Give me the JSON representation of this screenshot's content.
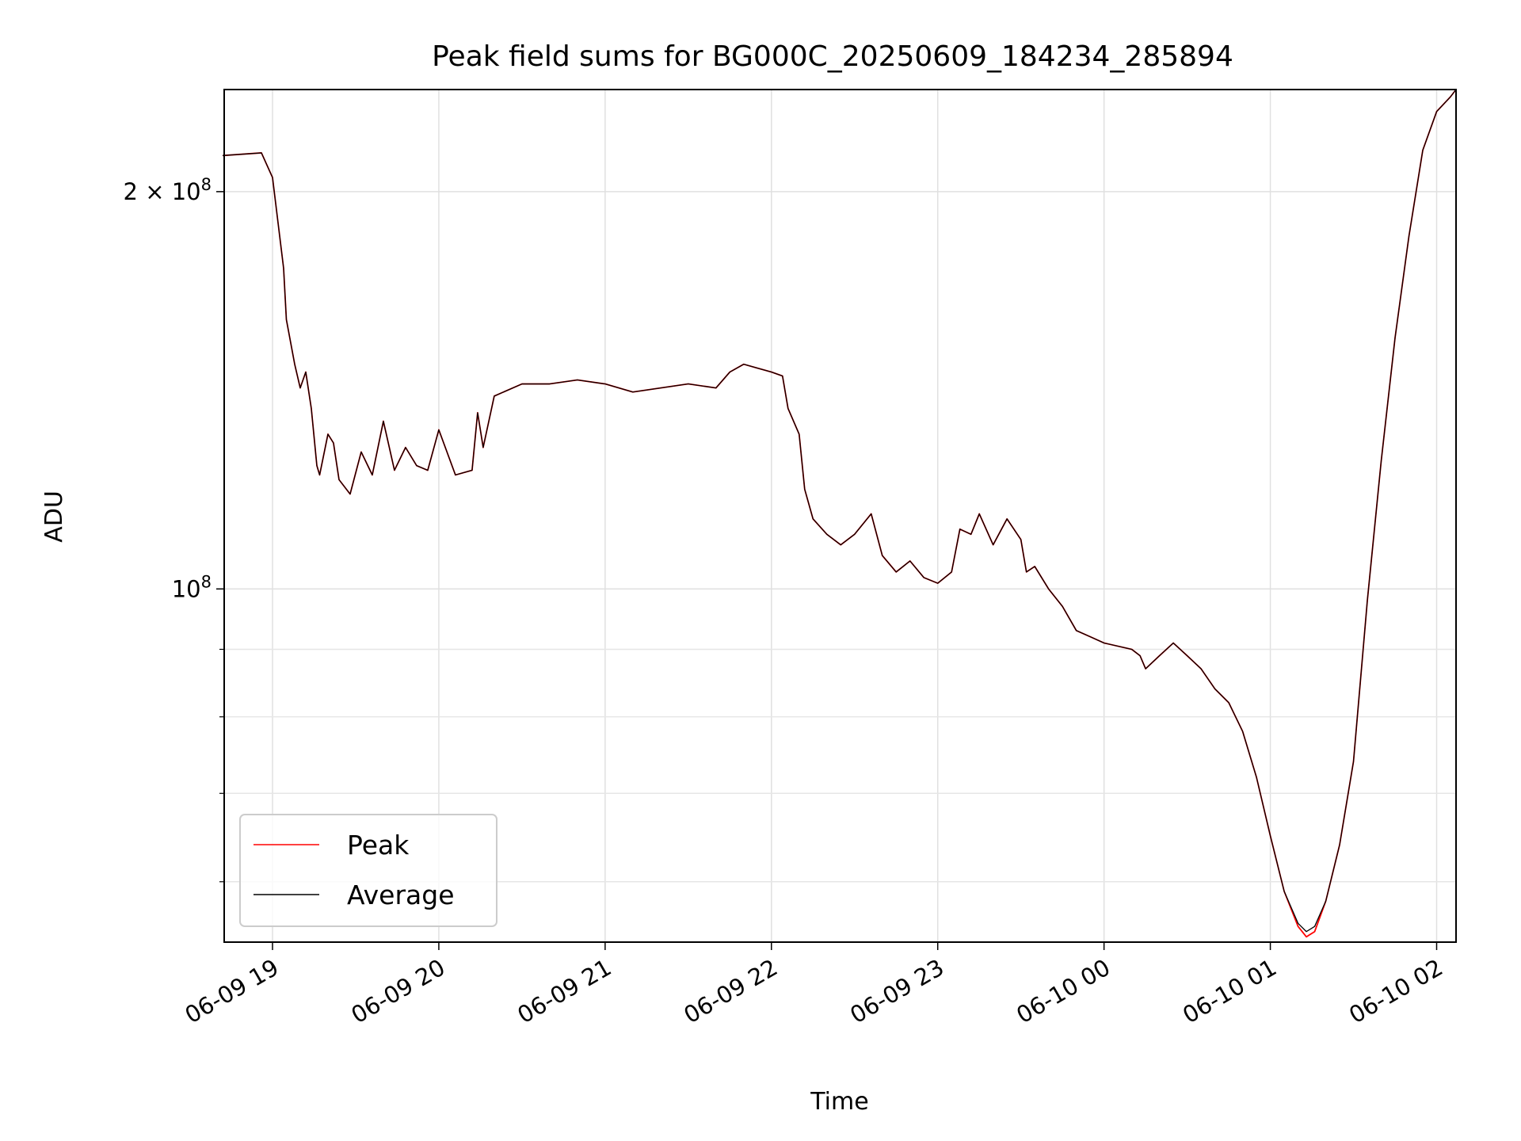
{
  "chart_data": {
    "type": "line",
    "title": "Peak field sums for BG000C_20250609_184234_285894",
    "xlabel": "Time",
    "ylabel": "ADU",
    "yscale": "log",
    "ylim": [
      54000000,
      239000000
    ],
    "xlim": [
      "2025-06-09 18:42:34",
      "2025-06-10 02:07:00"
    ],
    "grid": true,
    "legend_position": "lower-left",
    "x_ticks": [
      "06-09 19",
      "06-09 20",
      "06-09 21",
      "06-09 22",
      "06-09 23",
      "06-10 00",
      "06-10 01",
      "06-10 02"
    ],
    "y_ticks": [
      {
        "value": 100000000,
        "label_base": "10",
        "label_exp": "8"
      },
      {
        "value": 200000000,
        "label_base": "2 × 10",
        "label_exp": "8"
      }
    ],
    "series": [
      {
        "name": "Peak",
        "color": "#ff0000",
        "x": [
          "2025-06-09 18:42",
          "2025-06-09 18:56",
          "2025-06-09 19:00",
          "2025-06-09 19:04",
          "2025-06-09 19:05",
          "2025-06-09 19:08",
          "2025-06-09 19:10",
          "2025-06-09 19:12",
          "2025-06-09 19:14",
          "2025-06-09 19:16",
          "2025-06-09 19:17",
          "2025-06-09 19:20",
          "2025-06-09 19:22",
          "2025-06-09 19:24",
          "2025-06-09 19:28",
          "2025-06-09 19:32",
          "2025-06-09 19:36",
          "2025-06-09 19:40",
          "2025-06-09 19:44",
          "2025-06-09 19:48",
          "2025-06-09 19:52",
          "2025-06-09 19:56",
          "2025-06-09 20:00",
          "2025-06-09 20:06",
          "2025-06-09 20:12",
          "2025-06-09 20:14",
          "2025-06-09 20:16",
          "2025-06-09 20:20",
          "2025-06-09 20:30",
          "2025-06-09 20:40",
          "2025-06-09 20:50",
          "2025-06-09 21:00",
          "2025-06-09 21:10",
          "2025-06-09 21:20",
          "2025-06-09 21:30",
          "2025-06-09 21:40",
          "2025-06-09 21:45",
          "2025-06-09 21:50",
          "2025-06-09 21:55",
          "2025-06-09 22:00",
          "2025-06-09 22:04",
          "2025-06-09 22:06",
          "2025-06-09 22:10",
          "2025-06-09 22:12",
          "2025-06-09 22:15",
          "2025-06-09 22:20",
          "2025-06-09 22:25",
          "2025-06-09 22:30",
          "2025-06-09 22:36",
          "2025-06-09 22:40",
          "2025-06-09 22:45",
          "2025-06-09 22:50",
          "2025-06-09 22:55",
          "2025-06-09 23:00",
          "2025-06-09 23:05",
          "2025-06-09 23:08",
          "2025-06-09 23:12",
          "2025-06-09 23:15",
          "2025-06-09 23:20",
          "2025-06-09 23:25",
          "2025-06-09 23:30",
          "2025-06-09 23:32",
          "2025-06-09 23:35",
          "2025-06-09 23:40",
          "2025-06-09 23:45",
          "2025-06-09 23:50",
          "2025-06-09 23:55",
          "2025-06-10 00:00",
          "2025-06-10 00:10",
          "2025-06-10 00:13",
          "2025-06-10 00:15",
          "2025-06-10 00:20",
          "2025-06-10 00:25",
          "2025-06-10 00:30",
          "2025-06-10 00:35",
          "2025-06-10 00:40",
          "2025-06-10 00:45",
          "2025-06-10 00:50",
          "2025-06-10 00:55",
          "2025-06-10 01:00",
          "2025-06-10 01:05",
          "2025-06-10 01:10",
          "2025-06-10 01:13",
          "2025-06-10 01:16",
          "2025-06-10 01:20",
          "2025-06-10 01:25",
          "2025-06-10 01:30",
          "2025-06-10 01:35",
          "2025-06-10 01:40",
          "2025-06-10 01:45",
          "2025-06-10 01:50",
          "2025-06-10 01:55",
          "2025-06-10 02:00",
          "2025-06-10 02:05",
          "2025-06-10 02:07"
        ],
        "values": [
          213000000,
          214000000,
          205000000,
          175000000,
          160000000,
          148000000,
          142000000,
          146000000,
          137000000,
          124000000,
          122000000,
          131000000,
          129000000,
          121000000,
          118000000,
          127000000,
          122000000,
          134000000,
          123000000,
          128000000,
          124000000,
          123000000,
          132000000,
          122000000,
          123000000,
          136000000,
          128000000,
          140000000,
          143000000,
          143000000,
          144000000,
          143000000,
          141000000,
          142000000,
          143000000,
          142000000,
          146000000,
          148000000,
          147000000,
          146000000,
          145000000,
          137000000,
          131000000,
          119000000,
          113000000,
          110000000,
          108000000,
          110000000,
          114000000,
          106000000,
          103000000,
          105000000,
          102000000,
          101000000,
          103000000,
          111000000,
          110000000,
          114000000,
          108000000,
          113000000,
          109000000,
          103000000,
          104000000,
          100000000,
          97000000,
          93000000,
          92000000,
          91000000,
          90000000,
          89000000,
          87000000,
          89000000,
          91000000,
          89000000,
          87000000,
          84000000,
          82000000,
          78000000,
          72000000,
          65000000,
          59000000,
          55500000,
          54500000,
          55000000,
          58000000,
          64000000,
          74000000,
          98000000,
          125000000,
          155000000,
          185000000,
          215000000,
          230000000,
          236000000,
          239000000
        ]
      },
      {
        "name": "Average",
        "color": "#000000",
        "x": [
          "2025-06-09 18:42",
          "2025-06-09 18:56",
          "2025-06-09 19:00",
          "2025-06-09 19:04",
          "2025-06-09 19:05",
          "2025-06-09 19:08",
          "2025-06-09 19:10",
          "2025-06-09 19:12",
          "2025-06-09 19:14",
          "2025-06-09 19:16",
          "2025-06-09 19:17",
          "2025-06-09 19:20",
          "2025-06-09 19:22",
          "2025-06-09 19:24",
          "2025-06-09 19:28",
          "2025-06-09 19:32",
          "2025-06-09 19:36",
          "2025-06-09 19:40",
          "2025-06-09 19:44",
          "2025-06-09 19:48",
          "2025-06-09 19:52",
          "2025-06-09 19:56",
          "2025-06-09 20:00",
          "2025-06-09 20:06",
          "2025-06-09 20:12",
          "2025-06-09 20:14",
          "2025-06-09 20:16",
          "2025-06-09 20:20",
          "2025-06-09 20:30",
          "2025-06-09 20:40",
          "2025-06-09 20:50",
          "2025-06-09 21:00",
          "2025-06-09 21:10",
          "2025-06-09 21:20",
          "2025-06-09 21:30",
          "2025-06-09 21:40",
          "2025-06-09 21:45",
          "2025-06-09 21:50",
          "2025-06-09 21:55",
          "2025-06-09 22:00",
          "2025-06-09 22:04",
          "2025-06-09 22:06",
          "2025-06-09 22:10",
          "2025-06-09 22:12",
          "2025-06-09 22:15",
          "2025-06-09 22:20",
          "2025-06-09 22:25",
          "2025-06-09 22:30",
          "2025-06-09 22:36",
          "2025-06-09 22:40",
          "2025-06-09 22:45",
          "2025-06-09 22:50",
          "2025-06-09 22:55",
          "2025-06-09 23:00",
          "2025-06-09 23:05",
          "2025-06-09 23:08",
          "2025-06-09 23:12",
          "2025-06-09 23:15",
          "2025-06-09 23:20",
          "2025-06-09 23:25",
          "2025-06-09 23:30",
          "2025-06-09 23:32",
          "2025-06-09 23:35",
          "2025-06-09 23:40",
          "2025-06-09 23:45",
          "2025-06-09 23:50",
          "2025-06-09 23:55",
          "2025-06-10 00:00",
          "2025-06-10 00:10",
          "2025-06-10 00:13",
          "2025-06-10 00:15",
          "2025-06-10 00:20",
          "2025-06-10 00:25",
          "2025-06-10 00:30",
          "2025-06-10 00:35",
          "2025-06-10 00:40",
          "2025-06-10 00:45",
          "2025-06-10 00:50",
          "2025-06-10 00:55",
          "2025-06-10 01:00",
          "2025-06-10 01:05",
          "2025-06-10 01:10",
          "2025-06-10 01:13",
          "2025-06-10 01:16",
          "2025-06-10 01:20",
          "2025-06-10 01:25",
          "2025-06-10 01:30",
          "2025-06-10 01:35",
          "2025-06-10 01:40",
          "2025-06-10 01:45",
          "2025-06-10 01:50",
          "2025-06-10 01:55",
          "2025-06-10 02:00",
          "2025-06-10 02:05",
          "2025-06-10 02:07"
        ],
        "values": [
          213000000,
          214000000,
          205000000,
          175000000,
          160000000,
          148000000,
          142000000,
          146000000,
          137000000,
          124000000,
          122000000,
          131000000,
          129000000,
          121000000,
          118000000,
          127000000,
          122000000,
          134000000,
          123000000,
          128000000,
          124000000,
          123000000,
          132000000,
          122000000,
          123000000,
          136000000,
          128000000,
          140000000,
          143000000,
          143000000,
          144000000,
          143000000,
          141000000,
          142000000,
          143000000,
          142000000,
          146000000,
          148000000,
          147000000,
          146000000,
          145000000,
          137000000,
          131000000,
          119000000,
          113000000,
          110000000,
          108000000,
          110000000,
          114000000,
          106000000,
          103000000,
          105000000,
          102000000,
          101000000,
          103000000,
          111000000,
          110000000,
          114000000,
          108000000,
          113000000,
          109000000,
          103000000,
          104000000,
          100000000,
          97000000,
          93000000,
          92000000,
          91000000,
          90000000,
          89000000,
          87000000,
          89000000,
          91000000,
          89000000,
          87000000,
          84000000,
          82000000,
          78000000,
          72000000,
          65000000,
          59000000,
          55800000,
          55000000,
          55500000,
          58000000,
          64000000,
          74000000,
          98000000,
          125000000,
          155000000,
          185000000,
          215000000,
          230000000,
          236000000,
          239000000
        ]
      }
    ]
  }
}
